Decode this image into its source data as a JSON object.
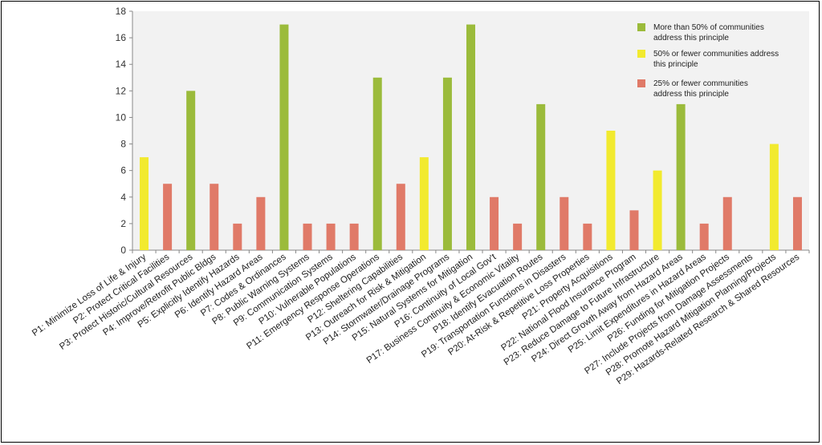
{
  "chart_data": {
    "type": "bar",
    "categories": [
      "P1: Minimize Loss of Life & Injury",
      "P2: Protect Critical Facilities",
      "P3: Protect Historic/Cultural Resources",
      "P4: Improve/Retrofit Public Bldgs",
      "P5: Explicitly Identify Hazards",
      "P6: Identify Hazard  Areas",
      "P7: Codes & Ordinances",
      "P8: Public Warning Systems",
      "P9: Communication Systems",
      "P10: Vulnerable Populations",
      "P11: Emergency Response Operations",
      "P12: Sheltering Capabilities",
      "P13: Outreach for Risk & Mitigation",
      "P14: Stormwater/Drainage  Programs",
      "P15: Natural Systems for Mitigation",
      "P16: Continuity of Local Gov't",
      "P17: Business Continuity & Economic Vitality",
      "P18: Identify Evacuation Routes",
      "P19: Transportation Functions in Disasters",
      "P20: At-Risk & Repetitive Loss Properties",
      "P21: Property Acquisitions",
      "P22: National Flood Insurance Program",
      "P23: Reduce Damage to Future Infrastructure",
      "P24: Direct Growth Away from Hazard Areas",
      "P25: Limit Expenditures in Hazard Areas",
      "P26: Funding for Mitigation Projects",
      "P27: Include Projects from Damage Assessments",
      "P28: Promote Hazard Mitigation Planning/Projects",
      "P29: Hazards-Related  Research & Shared Resources"
    ],
    "values": [
      7,
      5,
      12,
      5,
      2,
      4,
      17,
      2,
      2,
      2,
      13,
      5,
      7,
      13,
      17,
      4,
      2,
      11,
      4,
      2,
      9,
      3,
      6,
      11,
      2,
      4,
      0,
      8,
      4
    ],
    "groups": [
      "y",
      "r",
      "g",
      "r",
      "r",
      "r",
      "g",
      "r",
      "r",
      "r",
      "g",
      "r",
      "y",
      "g",
      "g",
      "r",
      "r",
      "g",
      "r",
      "r",
      "y",
      "r",
      "y",
      "g",
      "r",
      "r",
      "r",
      "y",
      "r"
    ],
    "ylim": [
      0,
      18
    ],
    "yticks": [
      0,
      2,
      4,
      6,
      8,
      10,
      12,
      14,
      16,
      18
    ],
    "grid": false,
    "legend_position": "top-right",
    "legend": [
      {
        "key": "g",
        "color": "#9bbb3b",
        "lines": [
          "More than 50% of communities",
          "address this principle"
        ]
      },
      {
        "key": "y",
        "color": "#f2ea2f",
        "lines": [
          "50% or fewer communities address",
          "this principle"
        ]
      },
      {
        "key": "r",
        "color": "#e07a68",
        "lines": [
          "25% or fewer communities",
          "address this principle"
        ]
      }
    ],
    "plot_background": "#f2f2f2"
  }
}
